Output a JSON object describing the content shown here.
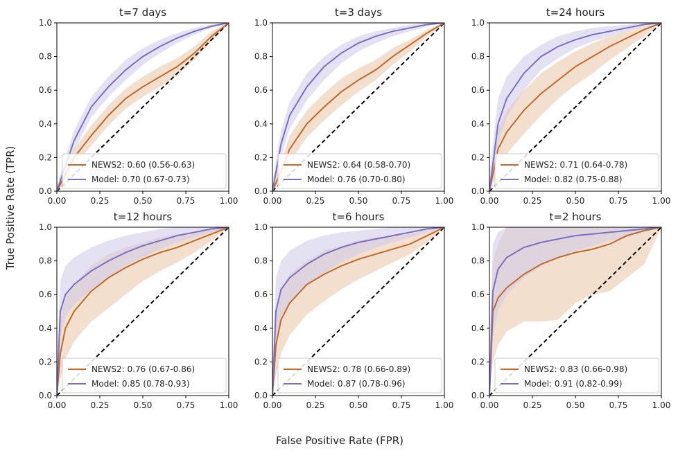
{
  "figure": {
    "xlabel": "False Positive Rate (FPR)",
    "ylabel": "True Positive Rate (TPR)"
  },
  "colors": {
    "news2": "#c0692b",
    "news2_band": "#e9c4a6",
    "model": "#7a6fc0",
    "model_band": "#cdc8ea",
    "diagonal": "#000000"
  },
  "chart_data": [
    {
      "type": "line",
      "title": "t=7 days",
      "xlim": [
        0,
        1
      ],
      "ylim": [
        0,
        1
      ],
      "xticks": [
        "0.00",
        "0.25",
        "0.50",
        "0.75",
        "1.00"
      ],
      "yticks": [
        "0.0",
        "0.2",
        "0.4",
        "0.6",
        "0.8",
        "1.0"
      ],
      "legend": "lower-right",
      "series": [
        {
          "name": "NEWS2: 0.60 (0.56-0.63)",
          "key": "news2",
          "x": [
            0,
            0.05,
            0.1,
            0.2,
            0.3,
            0.4,
            0.5,
            0.6,
            0.7,
            0.8,
            0.9,
            1.0
          ],
          "y": [
            0,
            0.1,
            0.2,
            0.33,
            0.45,
            0.55,
            0.62,
            0.68,
            0.74,
            0.82,
            0.92,
            1.0
          ],
          "lower": [
            0,
            0.06,
            0.15,
            0.27,
            0.39,
            0.49,
            0.56,
            0.62,
            0.69,
            0.78,
            0.89,
            1.0
          ],
          "upper": [
            0.02,
            0.14,
            0.25,
            0.39,
            0.51,
            0.61,
            0.68,
            0.74,
            0.79,
            0.86,
            0.95,
            1.0
          ]
        },
        {
          "name": "Model: 0.70 (0.67-0.73)",
          "key": "model",
          "x": [
            0,
            0.05,
            0.1,
            0.2,
            0.3,
            0.4,
            0.5,
            0.6,
            0.7,
            0.8,
            0.9,
            1.0
          ],
          "y": [
            0,
            0.15,
            0.3,
            0.5,
            0.62,
            0.72,
            0.8,
            0.86,
            0.91,
            0.95,
            0.98,
            1.0
          ],
          "lower": [
            0,
            0.1,
            0.24,
            0.44,
            0.56,
            0.66,
            0.75,
            0.82,
            0.88,
            0.93,
            0.97,
            1.0
          ],
          "upper": [
            0.03,
            0.2,
            0.36,
            0.56,
            0.68,
            0.78,
            0.85,
            0.9,
            0.94,
            0.97,
            0.99,
            1.0
          ]
        }
      ]
    },
    {
      "type": "line",
      "title": "t=3 days",
      "xlim": [
        0,
        1
      ],
      "ylim": [
        0,
        1
      ],
      "xticks": [
        "0.00",
        "0.25",
        "0.50",
        "0.75",
        "1.00"
      ],
      "yticks": [
        "0.0",
        "0.2",
        "0.4",
        "0.6",
        "0.8",
        "1.0"
      ],
      "legend": "lower-right",
      "series": [
        {
          "name": "NEWS2: 0.64 (0.58-0.70)",
          "key": "news2",
          "x": [
            0,
            0.05,
            0.1,
            0.2,
            0.3,
            0.4,
            0.5,
            0.6,
            0.7,
            0.8,
            0.9,
            1.0
          ],
          "y": [
            0,
            0.12,
            0.25,
            0.4,
            0.5,
            0.59,
            0.66,
            0.72,
            0.8,
            0.87,
            0.94,
            1.0
          ],
          "lower": [
            0,
            0.06,
            0.17,
            0.32,
            0.42,
            0.51,
            0.59,
            0.66,
            0.75,
            0.83,
            0.92,
            1.0
          ],
          "upper": [
            0.03,
            0.18,
            0.33,
            0.48,
            0.58,
            0.67,
            0.73,
            0.78,
            0.85,
            0.9,
            0.96,
            1.0
          ]
        },
        {
          "name": "Model: 0.76 (0.70-0.80)",
          "key": "model",
          "x": [
            0,
            0.05,
            0.1,
            0.2,
            0.3,
            0.4,
            0.5,
            0.6,
            0.7,
            0.8,
            0.9,
            1.0
          ],
          "y": [
            0,
            0.28,
            0.45,
            0.62,
            0.74,
            0.82,
            0.88,
            0.92,
            0.95,
            0.97,
            0.99,
            1.0
          ],
          "lower": [
            0,
            0.2,
            0.37,
            0.54,
            0.66,
            0.76,
            0.83,
            0.88,
            0.92,
            0.95,
            0.98,
            1.0
          ],
          "upper": [
            0.05,
            0.36,
            0.53,
            0.7,
            0.8,
            0.87,
            0.92,
            0.95,
            0.97,
            0.99,
            1.0,
            1.0
          ]
        }
      ]
    },
    {
      "type": "line",
      "title": "t=24 hours",
      "xlim": [
        0,
        1
      ],
      "ylim": [
        0,
        1
      ],
      "xticks": [
        "0.00",
        "0.25",
        "0.50",
        "0.75",
        "1.00"
      ],
      "yticks": [
        "0.0",
        "0.2",
        "0.4",
        "0.6",
        "0.8",
        "1.0"
      ],
      "legend": "lower-right",
      "series": [
        {
          "name": "NEWS2: 0.71 (0.64-0.78)",
          "key": "news2",
          "x": [
            0,
            0.05,
            0.1,
            0.2,
            0.3,
            0.4,
            0.5,
            0.6,
            0.7,
            0.8,
            0.9,
            1.0
          ],
          "y": [
            0,
            0.25,
            0.35,
            0.48,
            0.58,
            0.66,
            0.74,
            0.8,
            0.86,
            0.91,
            0.96,
            1.0
          ],
          "lower": [
            0,
            0.12,
            0.22,
            0.34,
            0.45,
            0.55,
            0.63,
            0.7,
            0.78,
            0.85,
            0.92,
            1.0
          ],
          "upper": [
            0.05,
            0.37,
            0.48,
            0.6,
            0.7,
            0.77,
            0.83,
            0.88,
            0.92,
            0.95,
            0.98,
            1.0
          ]
        },
        {
          "name": "Model: 0.82 (0.75-0.88)",
          "key": "model",
          "x": [
            0,
            0.05,
            0.1,
            0.2,
            0.3,
            0.4,
            0.5,
            0.6,
            0.7,
            0.8,
            0.9,
            1.0
          ],
          "y": [
            0,
            0.4,
            0.55,
            0.7,
            0.8,
            0.86,
            0.9,
            0.93,
            0.95,
            0.97,
            0.99,
            1.0
          ],
          "lower": [
            0,
            0.28,
            0.44,
            0.6,
            0.72,
            0.79,
            0.85,
            0.89,
            0.92,
            0.95,
            0.98,
            1.0
          ],
          "upper": [
            0.1,
            0.55,
            0.68,
            0.8,
            0.87,
            0.92,
            0.95,
            0.97,
            0.98,
            0.99,
            1.0,
            1.0
          ]
        }
      ]
    },
    {
      "type": "line",
      "title": "t=12 hours",
      "xlim": [
        0,
        1
      ],
      "ylim": [
        0,
        1
      ],
      "xticks": [
        "0.00",
        "0.25",
        "0.50",
        "0.75",
        "1.00"
      ],
      "yticks": [
        "0.0",
        "0.2",
        "0.4",
        "0.6",
        "0.8",
        "1.0"
      ],
      "legend": "lower-right",
      "series": [
        {
          "name": "NEWS2: 0.76 (0.67-0.86)",
          "key": "news2",
          "x": [
            0,
            0.02,
            0.05,
            0.1,
            0.2,
            0.3,
            0.4,
            0.5,
            0.6,
            0.7,
            0.8,
            0.9,
            1.0
          ],
          "y": [
            0,
            0.25,
            0.4,
            0.5,
            0.62,
            0.7,
            0.76,
            0.81,
            0.85,
            0.88,
            0.92,
            0.96,
            1.0
          ],
          "lower": [
            0,
            0.1,
            0.22,
            0.32,
            0.44,
            0.52,
            0.6,
            0.68,
            0.74,
            0.79,
            0.85,
            0.92,
            1.0
          ],
          "upper": [
            0.08,
            0.45,
            0.58,
            0.66,
            0.77,
            0.84,
            0.88,
            0.91,
            0.94,
            0.96,
            0.97,
            0.99,
            1.0
          ]
        },
        {
          "name": "Model: 0.85 (0.78-0.93)",
          "key": "model",
          "x": [
            0,
            0.02,
            0.05,
            0.1,
            0.2,
            0.3,
            0.4,
            0.5,
            0.6,
            0.7,
            0.8,
            0.9,
            1.0
          ],
          "y": [
            0,
            0.5,
            0.6,
            0.66,
            0.74,
            0.8,
            0.85,
            0.89,
            0.92,
            0.95,
            0.97,
            0.99,
            1.0
          ],
          "lower": [
            0,
            0.35,
            0.47,
            0.54,
            0.63,
            0.7,
            0.77,
            0.82,
            0.87,
            0.91,
            0.94,
            0.97,
            1.0
          ],
          "upper": [
            0.15,
            0.68,
            0.77,
            0.82,
            0.88,
            0.92,
            0.95,
            0.97,
            0.99,
            1.0,
            1.0,
            1.0,
            1.0
          ]
        }
      ]
    },
    {
      "type": "line",
      "title": "t=6 hours",
      "xlim": [
        0,
        1
      ],
      "ylim": [
        0,
        1
      ],
      "xticks": [
        "0.00",
        "0.25",
        "0.50",
        "0.75",
        "1.00"
      ],
      "yticks": [
        "0.0",
        "0.2",
        "0.4",
        "0.6",
        "0.8",
        "1.0"
      ],
      "legend": "lower-right",
      "series": [
        {
          "name": "NEWS2: 0.78 (0.66-0.89)",
          "key": "news2",
          "x": [
            0,
            0.02,
            0.05,
            0.1,
            0.2,
            0.3,
            0.4,
            0.5,
            0.6,
            0.7,
            0.8,
            0.9,
            1.0
          ],
          "y": [
            0,
            0.3,
            0.45,
            0.55,
            0.66,
            0.72,
            0.77,
            0.81,
            0.84,
            0.87,
            0.9,
            0.95,
            1.0
          ],
          "lower": [
            0,
            0.12,
            0.25,
            0.36,
            0.48,
            0.56,
            0.63,
            0.69,
            0.74,
            0.79,
            0.84,
            0.91,
            1.0
          ],
          "upper": [
            0.1,
            0.5,
            0.63,
            0.72,
            0.8,
            0.86,
            0.89,
            0.92,
            0.94,
            0.95,
            0.96,
            0.98,
            1.0
          ]
        },
        {
          "name": "Model: 0.87 (0.78-0.96)",
          "key": "model",
          "x": [
            0,
            0.02,
            0.05,
            0.1,
            0.2,
            0.3,
            0.4,
            0.5,
            0.6,
            0.7,
            0.8,
            0.9,
            1.0
          ],
          "y": [
            0,
            0.5,
            0.63,
            0.7,
            0.78,
            0.84,
            0.88,
            0.91,
            0.93,
            0.95,
            0.97,
            0.99,
            1.0
          ],
          "lower": [
            0,
            0.32,
            0.47,
            0.55,
            0.65,
            0.73,
            0.79,
            0.84,
            0.88,
            0.91,
            0.94,
            0.97,
            1.0
          ],
          "upper": [
            0.2,
            0.7,
            0.8,
            0.86,
            0.92,
            0.95,
            0.97,
            0.98,
            0.99,
            1.0,
            1.0,
            1.0,
            1.0
          ]
        }
      ]
    },
    {
      "type": "line",
      "title": "t=2 hours",
      "xlim": [
        0,
        1
      ],
      "ylim": [
        0,
        1
      ],
      "xticks": [
        "0.00",
        "0.25",
        "0.50",
        "0.75",
        "1.00"
      ],
      "yticks": [
        "0.0",
        "0.2",
        "0.4",
        "0.6",
        "0.8",
        "1.0"
      ],
      "legend": "lower-right",
      "series": [
        {
          "name": "NEWS2: 0.83 (0.66-0.98)",
          "key": "news2",
          "x": [
            0,
            0.02,
            0.05,
            0.1,
            0.2,
            0.3,
            0.4,
            0.5,
            0.6,
            0.7,
            0.8,
            0.9,
            1.0
          ],
          "y": [
            0,
            0.5,
            0.58,
            0.64,
            0.72,
            0.78,
            0.82,
            0.85,
            0.87,
            0.9,
            0.95,
            0.98,
            1.0
          ],
          "lower": [
            0,
            0.2,
            0.3,
            0.38,
            0.44,
            0.44,
            0.45,
            0.55,
            0.6,
            0.62,
            0.7,
            0.78,
            1.0
          ],
          "upper": [
            0.2,
            0.8,
            0.9,
            1.0,
            1.0,
            1.0,
            1.0,
            1.0,
            1.0,
            1.0,
            1.0,
            1.0,
            1.0
          ]
        },
        {
          "name": "Model: 0.91 (0.82-0.99)",
          "key": "model",
          "x": [
            0,
            0.02,
            0.05,
            0.1,
            0.2,
            0.3,
            0.4,
            0.5,
            0.6,
            0.7,
            0.8,
            0.9,
            1.0
          ],
          "y": [
            0,
            0.62,
            0.75,
            0.82,
            0.88,
            0.91,
            0.93,
            0.95,
            0.96,
            0.97,
            0.98,
            0.99,
            1.0
          ],
          "lower": [
            0,
            0.35,
            0.5,
            0.6,
            0.7,
            0.77,
            0.82,
            0.86,
            0.89,
            0.92,
            0.94,
            0.97,
            1.0
          ],
          "upper": [
            0.3,
            0.9,
            0.97,
            1.0,
            1.0,
            1.0,
            1.0,
            1.0,
            1.0,
            1.0,
            1.0,
            1.0,
            1.0
          ]
        }
      ]
    }
  ]
}
